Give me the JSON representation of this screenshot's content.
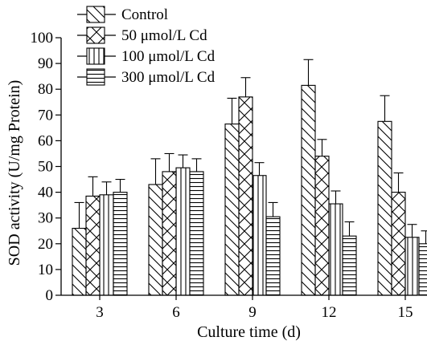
{
  "chart_data": {
    "type": "bar",
    "xlabel": "Culture time (d)",
    "ylabel": "SOD activity (U/mg Protein)",
    "ylim": [
      0,
      100
    ],
    "ytick_step": 10,
    "categories": [
      "3",
      "6",
      "9",
      "12",
      "15"
    ],
    "legend_position": "top-left",
    "error_bars": true,
    "series": [
      {
        "name": "Control",
        "pattern": "diag-back",
        "values": [
          26,
          43,
          66.5,
          81.5,
          67.5
        ],
        "errors": [
          10,
          10,
          10,
          10,
          10
        ]
      },
      {
        "name": "50 μmol/L Cd",
        "pattern": "cross",
        "values": [
          38.5,
          48,
          77,
          54,
          40
        ],
        "errors": [
          7.5,
          7,
          7.5,
          6.5,
          7.5
        ]
      },
      {
        "name": "100 μmol/L Cd",
        "pattern": "vertical",
        "values": [
          39,
          49.5,
          46.5,
          35.5,
          22.5
        ],
        "errors": [
          5,
          5,
          5,
          5,
          5
        ]
      },
      {
        "name": "300 μmol/L Cd",
        "pattern": "horizontal",
        "values": [
          40,
          48,
          30.5,
          23,
          20
        ],
        "errors": [
          5,
          5,
          5.5,
          5.5,
          5
        ]
      }
    ]
  }
}
